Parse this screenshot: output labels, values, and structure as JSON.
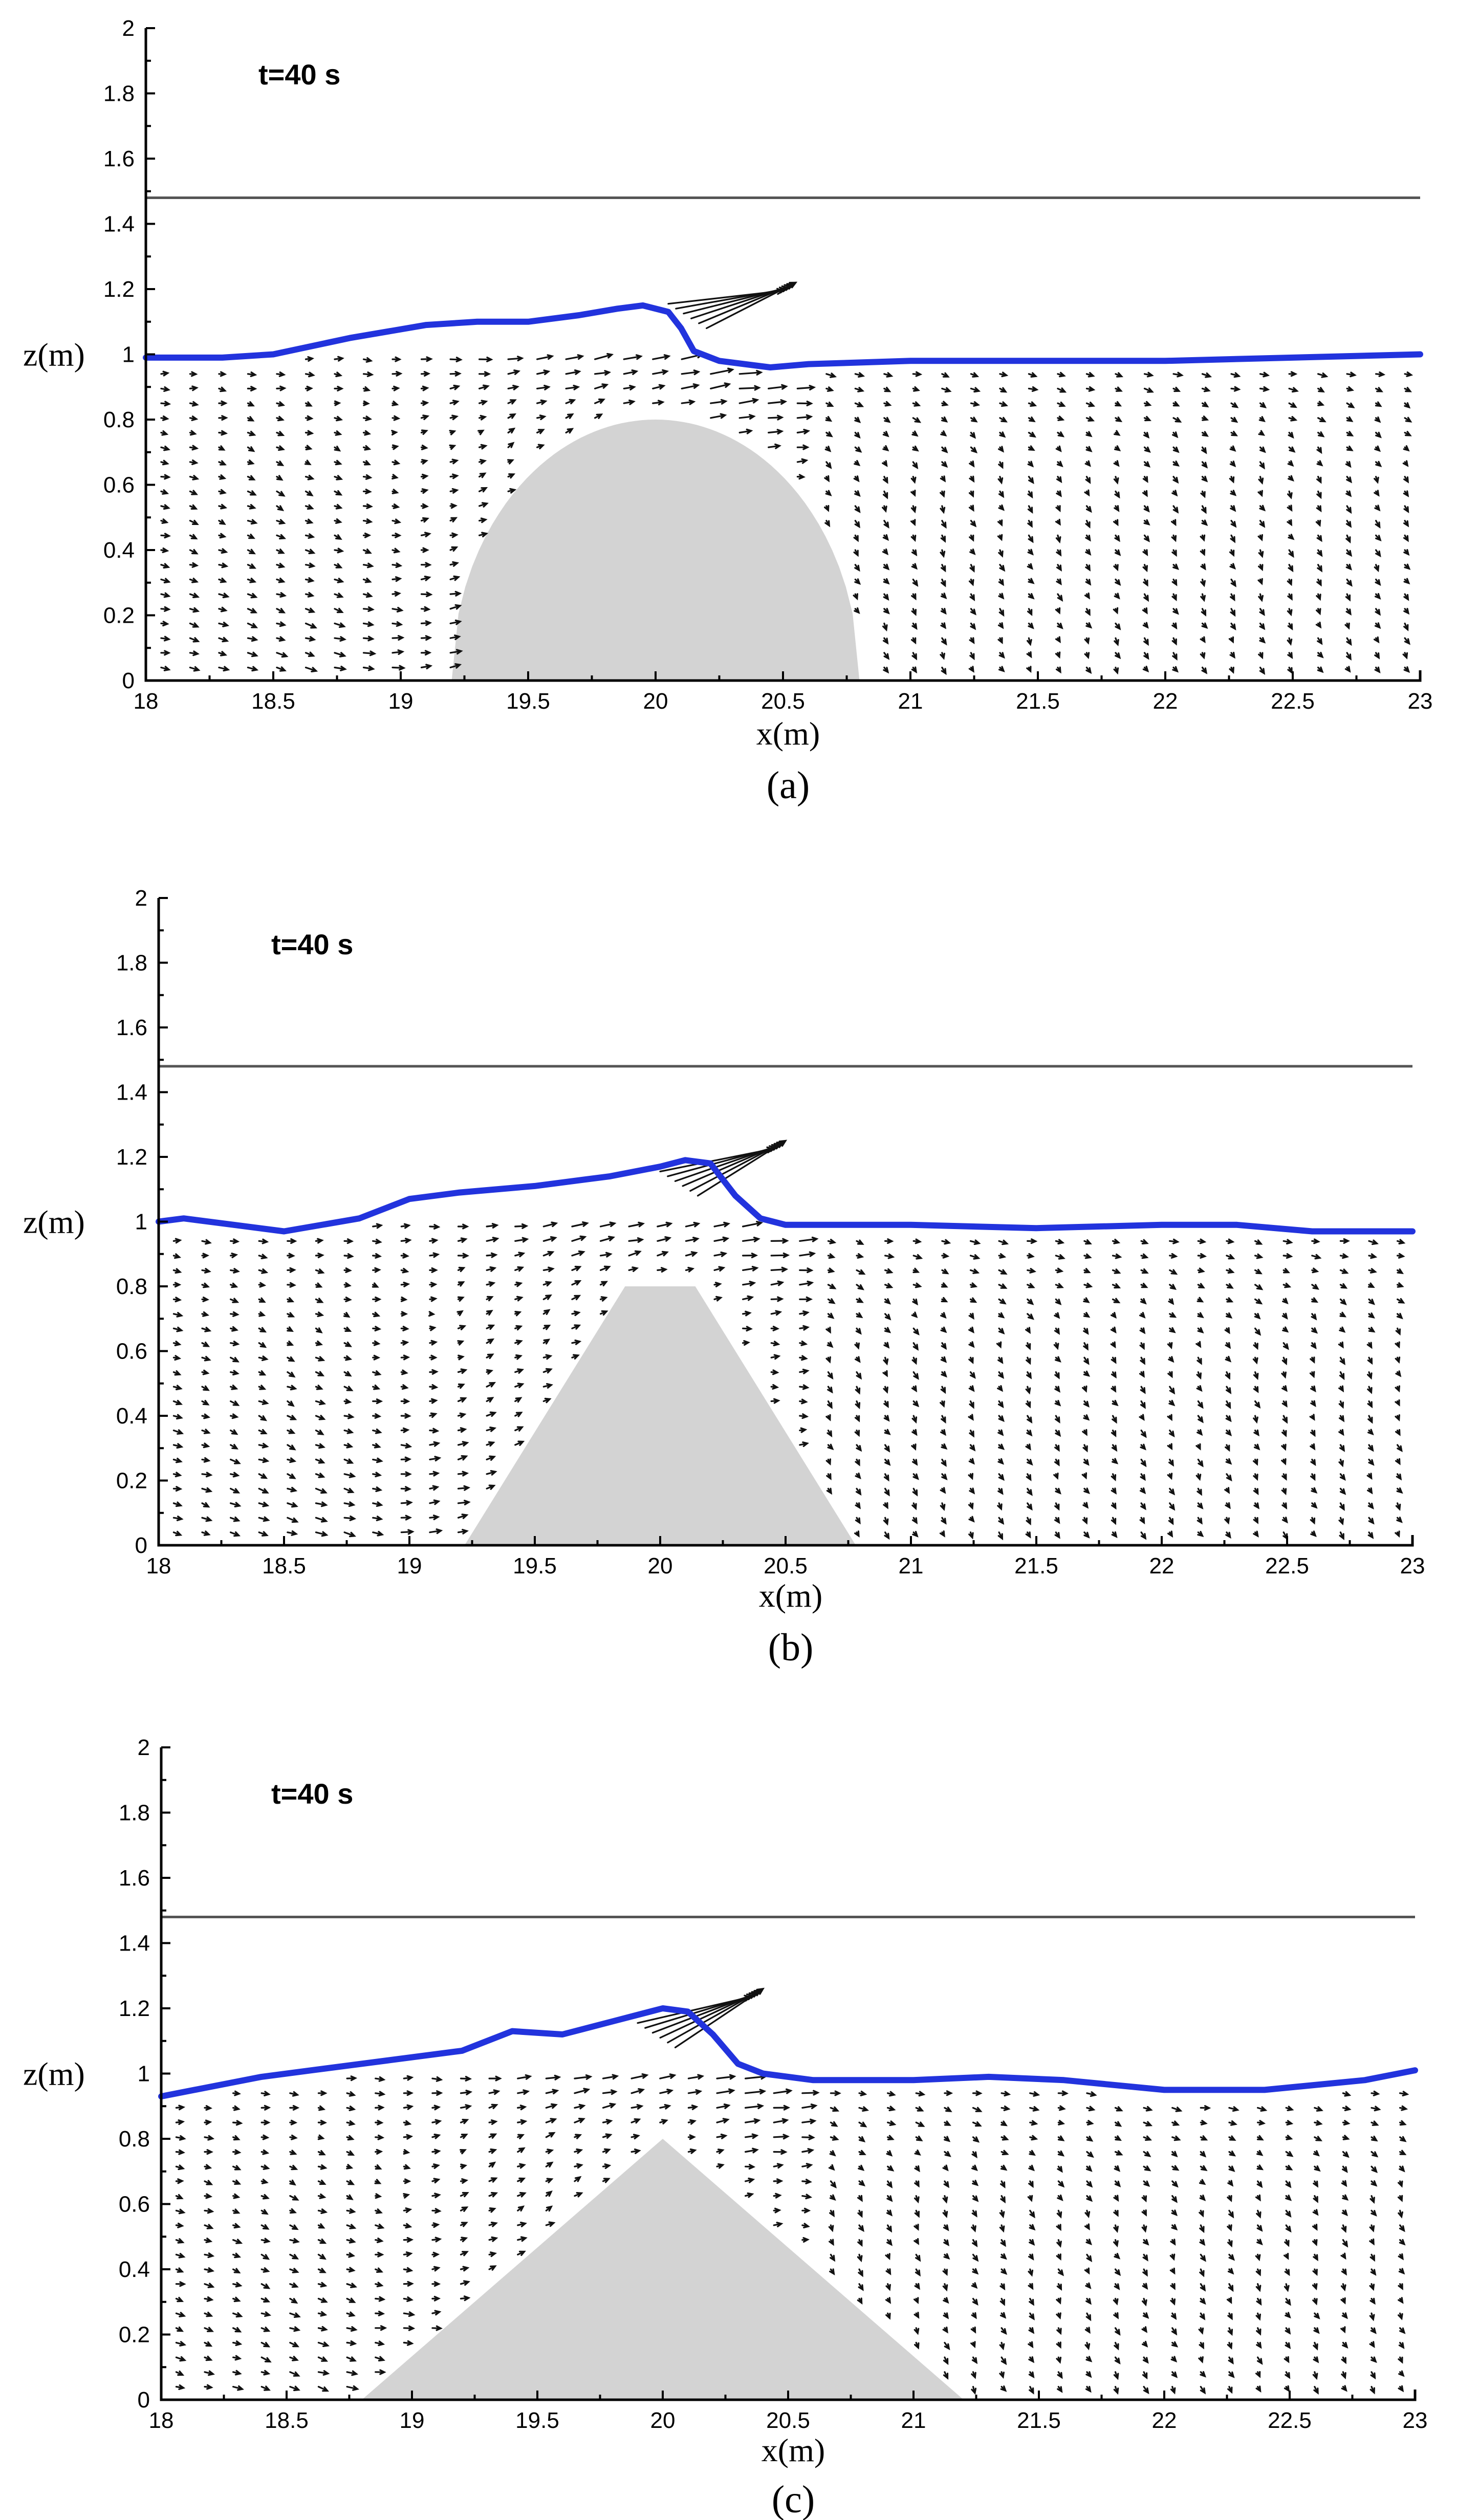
{
  "colors": {
    "free_surface": "#2233dd",
    "obstacle": "#d3d3d3",
    "reference_line": "#555555",
    "vectors": "#111111"
  },
  "chart_data": [
    {
      "type": "vector_field",
      "panel_label": "(a)",
      "time_label": "t=40 s",
      "xlabel": "x(m)",
      "ylabel": "z(m)",
      "xlim": [
        18,
        23
      ],
      "ylim": [
        0,
        2
      ],
      "x_ticks": [
        "18",
        "18.5",
        "19",
        "19.5",
        "20",
        "20.5",
        "21",
        "21.5",
        "22",
        "22.5",
        "23"
      ],
      "y_ticks": [
        "0",
        "0.2",
        "0.4",
        "0.6",
        "0.8",
        "1",
        "1.2",
        "1.4",
        "1.6",
        "1.8",
        "2"
      ],
      "reference_line_z": 1.48,
      "obstacle": {
        "shape": "semicircular",
        "x_range": [
          19.2,
          20.8
        ],
        "crest_z": 0.8
      },
      "free_surface": [
        [
          18.0,
          0.99
        ],
        [
          18.3,
          0.99
        ],
        [
          18.5,
          1.0
        ],
        [
          18.8,
          1.05
        ],
        [
          19.1,
          1.09
        ],
        [
          19.3,
          1.1
        ],
        [
          19.5,
          1.1
        ],
        [
          19.7,
          1.12
        ],
        [
          19.85,
          1.14
        ],
        [
          19.95,
          1.15
        ],
        [
          20.05,
          1.13
        ],
        [
          20.1,
          1.08
        ],
        [
          20.15,
          1.01
        ],
        [
          20.25,
          0.98
        ],
        [
          20.45,
          0.96
        ],
        [
          20.6,
          0.97
        ],
        [
          21.0,
          0.98
        ],
        [
          21.5,
          0.98
        ],
        [
          22.0,
          0.98
        ],
        [
          22.5,
          0.99
        ],
        [
          23.0,
          1.0
        ]
      ],
      "jet_tip": [
        20.55,
        1.22
      ]
    },
    {
      "type": "vector_field",
      "panel_label": "(b)",
      "time_label": "t=40 s",
      "xlabel": "x(m)",
      "ylabel": "z(m)",
      "xlim": [
        18,
        23
      ],
      "ylim": [
        0,
        2
      ],
      "x_ticks": [
        "18",
        "18.5",
        "19",
        "19.5",
        "20",
        "20.5",
        "21",
        "21.5",
        "22",
        "22.5",
        "23"
      ],
      "y_ticks": [
        "0",
        "0.2",
        "0.4",
        "0.6",
        "0.8",
        "1",
        "1.2",
        "1.4",
        "1.6",
        "1.8",
        "2"
      ],
      "reference_line_z": 1.48,
      "obstacle": {
        "shape": "trapezoidal",
        "base_range": [
          19.22,
          20.78
        ],
        "crest_range": [
          19.86,
          20.14
        ],
        "crest_z": 0.8
      },
      "free_surface": [
        [
          18.0,
          1.0
        ],
        [
          18.1,
          1.01
        ],
        [
          18.3,
          0.99
        ],
        [
          18.5,
          0.97
        ],
        [
          18.8,
          1.01
        ],
        [
          19.0,
          1.07
        ],
        [
          19.2,
          1.09
        ],
        [
          19.5,
          1.11
        ],
        [
          19.8,
          1.14
        ],
        [
          20.0,
          1.17
        ],
        [
          20.1,
          1.19
        ],
        [
          20.2,
          1.18
        ],
        [
          20.3,
          1.08
        ],
        [
          20.4,
          1.01
        ],
        [
          20.5,
          0.99
        ],
        [
          21.0,
          0.99
        ],
        [
          21.5,
          0.98
        ],
        [
          22.0,
          0.99
        ],
        [
          22.3,
          0.99
        ],
        [
          22.6,
          0.97
        ],
        [
          23.0,
          0.97
        ]
      ],
      "jet_tip": [
        20.5,
        1.25
      ]
    },
    {
      "type": "vector_field",
      "panel_label": "(c)",
      "time_label": "t=40 s",
      "xlabel": "x(m)",
      "ylabel": "z(m)",
      "xlim": [
        18,
        23
      ],
      "ylim": [
        0,
        2
      ],
      "x_ticks": [
        "18",
        "18.5",
        "19",
        "19.5",
        "20",
        "20.5",
        "21",
        "21.5",
        "22",
        "22.5",
        "23"
      ],
      "y_ticks": [
        "0",
        "0.2",
        "0.4",
        "0.6",
        "0.8",
        "1",
        "1.2",
        "1.4",
        "1.6",
        "1.8",
        "2"
      ],
      "reference_line_z": 1.48,
      "obstacle": {
        "shape": "triangular",
        "base_range": [
          18.8,
          21.2
        ],
        "crest_x": 20.0,
        "crest_z": 0.8
      },
      "free_surface": [
        [
          18.0,
          0.93
        ],
        [
          18.2,
          0.96
        ],
        [
          18.4,
          0.99
        ],
        [
          18.6,
          1.01
        ],
        [
          18.9,
          1.04
        ],
        [
          19.2,
          1.07
        ],
        [
          19.4,
          1.13
        ],
        [
          19.6,
          1.12
        ],
        [
          19.8,
          1.16
        ],
        [
          20.0,
          1.2
        ],
        [
          20.1,
          1.19
        ],
        [
          20.2,
          1.12
        ],
        [
          20.3,
          1.03
        ],
        [
          20.4,
          1.0
        ],
        [
          20.6,
          0.98
        ],
        [
          21.0,
          0.98
        ],
        [
          21.3,
          0.99
        ],
        [
          21.6,
          0.98
        ],
        [
          22.0,
          0.95
        ],
        [
          22.4,
          0.95
        ],
        [
          22.8,
          0.98
        ],
        [
          23.0,
          1.01
        ]
      ],
      "jet_tip": [
        20.4,
        1.26
      ]
    }
  ]
}
